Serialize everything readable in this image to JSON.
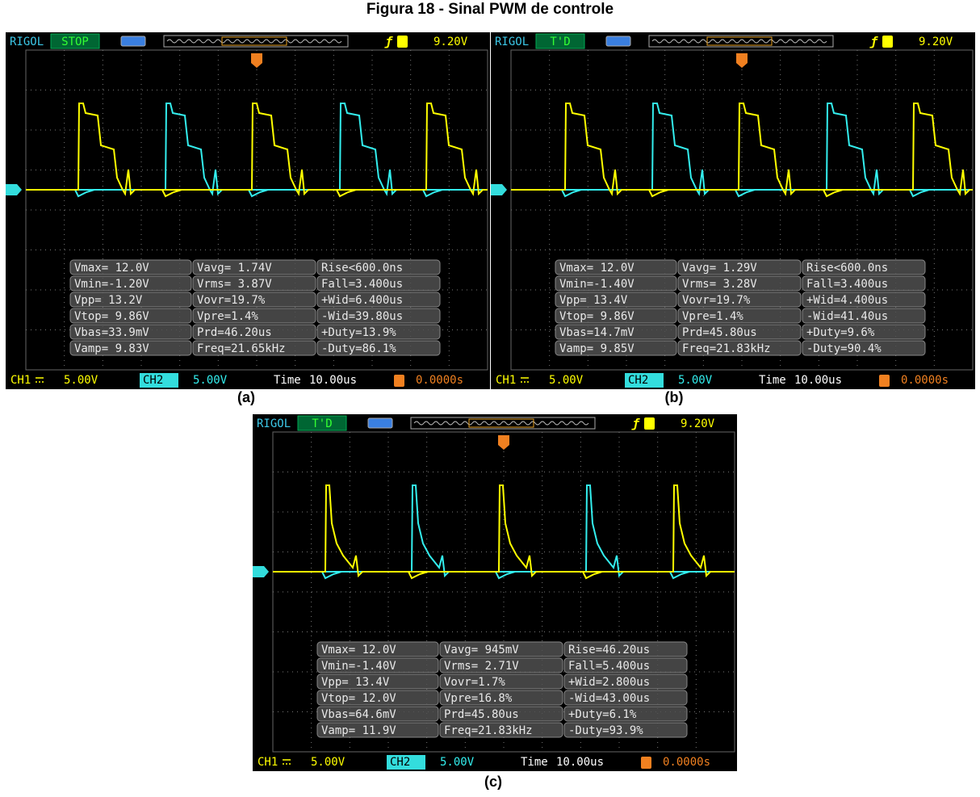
{
  "caption": "Figura 18 - Sinal PWM de controle",
  "scopes": [
    {
      "label": "(a)",
      "brand": "RIGOL",
      "status": "STOP",
      "trigger_level": "9.20V",
      "ch1": "CH1",
      "ch1_scale": "5.00V",
      "ch2": "CH2",
      "ch2_scale": "5.00V",
      "time_label": "Time",
      "time_scale": "10.00us",
      "trigger_offset": "0.0000s",
      "measurements": [
        [
          "Vmax= 12.0V",
          "Vavg= 1.74V",
          "Rise<600.0ns"
        ],
        [
          "Vmin=-1.20V",
          "Vrms= 3.87V",
          "Fall=3.400us"
        ],
        [
          "Vpp= 13.2V",
          "Vovr=19.7%",
          "+Wid=6.400us"
        ],
        [
          "Vtop= 9.86V",
          "Vpre=1.4%",
          "-Wid=39.80us"
        ],
        [
          "Vbas=33.9mV",
          "Prd=46.20us",
          "+Duty=13.9%"
        ],
        [
          "Vamp= 9.83V",
          "Freq=21.65kHz",
          "-Duty=86.1%"
        ]
      ]
    },
    {
      "label": "(b)",
      "brand": "RIGOL",
      "status": "T'D",
      "trigger_level": "9.20V",
      "ch1": "CH1",
      "ch1_scale": "5.00V",
      "ch2": "CH2",
      "ch2_scale": "5.00V",
      "time_label": "Time",
      "time_scale": "10.00us",
      "trigger_offset": "0.0000s",
      "measurements": [
        [
          "Vmax= 12.0V",
          "Vavg= 1.29V",
          "Rise<600.0ns"
        ],
        [
          "Vmin=-1.40V",
          "Vrms= 3.28V",
          "Fall=3.400us"
        ],
        [
          "Vpp= 13.4V",
          "Vovr=19.7%",
          "+Wid=4.400us"
        ],
        [
          "Vtop= 9.86V",
          "Vpre=1.4%",
          "-Wid=41.40us"
        ],
        [
          "Vbas=14.7mV",
          "Prd=45.80us",
          "+Duty=9.6%"
        ],
        [
          "Vamp= 9.85V",
          "Freq=21.83kHz",
          "-Duty=90.4%"
        ]
      ]
    },
    {
      "label": "(c)",
      "brand": "RIGOL",
      "status": "T'D",
      "trigger_level": "9.20V",
      "ch1": "CH1",
      "ch1_scale": "5.00V",
      "ch2": "CH2",
      "ch2_scale": "5.00V",
      "time_label": "Time",
      "time_scale": "10.00us",
      "trigger_offset": "0.0000s",
      "measurements": [
        [
          "Vmax= 12.0V",
          "Vavg= 945mV",
          "Rise=46.20us"
        ],
        [
          "Vmin=-1.40V",
          "Vrms= 2.71V",
          "Fall=5.400us"
        ],
        [
          "Vpp= 13.4V",
          "Vovr=1.7%",
          "+Wid=2.800us"
        ],
        [
          "Vtop= 12.0V",
          "Vpre=16.8%",
          "-Wid=43.00us"
        ],
        [
          "Vbas=64.6mV",
          "Prd=45.80us",
          "+Duty=6.1%"
        ],
        [
          "Vamp= 11.9V",
          "Freq=21.83kHz",
          "-Duty=93.9%"
        ]
      ]
    }
  ]
}
